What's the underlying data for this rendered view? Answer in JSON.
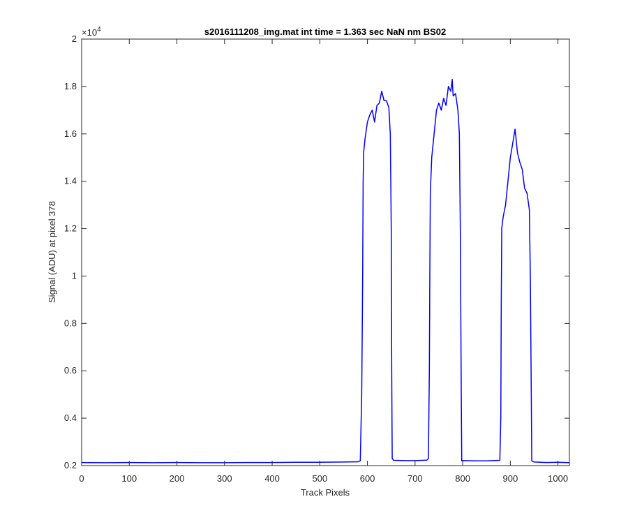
{
  "chart_data": {
    "type": "line",
    "title": "s2016111208_img.mat int time = 1.363 sec  NaN nm BS02",
    "xlabel": "Track Pixels",
    "ylabel": "Signal (ADU) at pixel 378",
    "y_multiplier_label": "×10",
    "y_multiplier_exponent": "4",
    "xlim": [
      0,
      1024
    ],
    "ylim": [
      0.2,
      2.0
    ],
    "y_scale_factor": 10000,
    "x_ticks": [
      0,
      100,
      200,
      300,
      400,
      500,
      600,
      700,
      800,
      900,
      1000
    ],
    "x_tick_labels": [
      "0",
      "100",
      "200",
      "300",
      "400",
      "500",
      "600",
      "700",
      "800",
      "900",
      "1000"
    ],
    "y_ticks": [
      0.2,
      0.4,
      0.6,
      0.8,
      1.0,
      1.2,
      1.4,
      1.6,
      1.8,
      2.0
    ],
    "y_tick_labels": [
      "0.2",
      "0.4",
      "0.6",
      "0.8",
      "1",
      "1.2",
      "1.4",
      "1.6",
      "1.8",
      "2"
    ],
    "grid": false,
    "line_color": "#0000ff",
    "series": [
      {
        "points": [
          [
            0,
            0.213
          ],
          [
            50,
            0.212
          ],
          [
            100,
            0.213
          ],
          [
            150,
            0.212
          ],
          [
            200,
            0.213
          ],
          [
            250,
            0.212
          ],
          [
            300,
            0.212
          ],
          [
            350,
            0.213
          ],
          [
            400,
            0.213
          ],
          [
            450,
            0.214
          ],
          [
            500,
            0.214
          ],
          [
            550,
            0.215
          ],
          [
            580,
            0.216
          ],
          [
            585,
            0.22
          ],
          [
            588,
            0.5
          ],
          [
            590,
            1.0
          ],
          [
            591,
            1.4
          ],
          [
            592,
            1.52
          ],
          [
            595,
            1.58
          ],
          [
            600,
            1.65
          ],
          [
            605,
            1.68
          ],
          [
            610,
            1.7
          ],
          [
            615,
            1.65
          ],
          [
            620,
            1.72
          ],
          [
            625,
            1.73
          ],
          [
            630,
            1.78
          ],
          [
            635,
            1.74
          ],
          [
            640,
            1.74
          ],
          [
            645,
            1.71
          ],
          [
            648,
            1.6
          ],
          [
            650,
            1.2
          ],
          [
            651,
            0.6
          ],
          [
            652,
            0.23
          ],
          [
            655,
            0.222
          ],
          [
            680,
            0.221
          ],
          [
            700,
            0.221
          ],
          [
            725,
            0.223
          ],
          [
            728,
            0.23
          ],
          [
            730,
            0.6
          ],
          [
            731,
            1.0
          ],
          [
            732,
            1.35
          ],
          [
            735,
            1.5
          ],
          [
            740,
            1.6
          ],
          [
            745,
            1.7
          ],
          [
            750,
            1.73
          ],
          [
            755,
            1.7
          ],
          [
            760,
            1.75
          ],
          [
            765,
            1.72
          ],
          [
            770,
            1.8
          ],
          [
            775,
            1.78
          ],
          [
            778,
            1.83
          ],
          [
            780,
            1.76
          ],
          [
            785,
            1.77
          ],
          [
            790,
            1.7
          ],
          [
            793,
            1.6
          ],
          [
            795,
            1.2
          ],
          [
            797,
            0.5
          ],
          [
            798,
            0.22
          ],
          [
            800,
            0.221
          ],
          [
            830,
            0.22
          ],
          [
            850,
            0.22
          ],
          [
            878,
            0.222
          ],
          [
            880,
            0.4
          ],
          [
            881,
            0.9
          ],
          [
            882,
            1.2
          ],
          [
            885,
            1.25
          ],
          [
            890,
            1.3
          ],
          [
            895,
            1.4
          ],
          [
            900,
            1.5
          ],
          [
            905,
            1.56
          ],
          [
            910,
            1.62
          ],
          [
            915,
            1.52
          ],
          [
            920,
            1.48
          ],
          [
            925,
            1.45
          ],
          [
            930,
            1.37
          ],
          [
            935,
            1.35
          ],
          [
            940,
            1.28
          ],
          [
            942,
            1.0
          ],
          [
            944,
            0.5
          ],
          [
            945,
            0.22
          ],
          [
            950,
            0.215
          ],
          [
            975,
            0.213
          ],
          [
            1000,
            0.214
          ],
          [
            1024,
            0.212
          ]
        ]
      }
    ]
  }
}
